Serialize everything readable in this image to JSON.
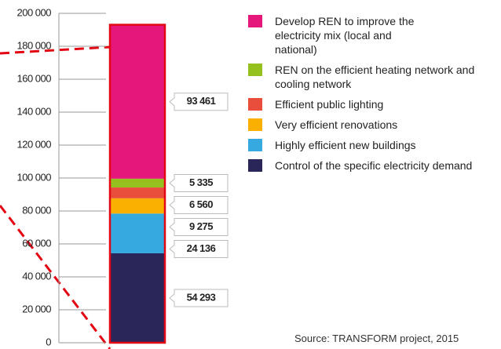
{
  "chart_data": {
    "type": "stacked-bar",
    "series": [
      {
        "name": "Control of the specific electricity demand",
        "color": "#2b2659",
        "values": [
          54293
        ],
        "value_labels": [
          "54 293"
        ]
      },
      {
        "name": "Highly efficient new buildings",
        "color": "#36a9e1",
        "values": [
          24136
        ],
        "value_labels": [
          "24 136"
        ]
      },
      {
        "name": "Very efficient renovations",
        "color": "#f9b000",
        "values": [
          9275
        ],
        "value_labels": [
          "9 275"
        ]
      },
      {
        "name": "Efficient public lighting",
        "color": "#e94e3d",
        "values": [
          6560
        ],
        "value_labels": [
          "6 560"
        ]
      },
      {
        "name": "REN on the efficient heating network and cooling network",
        "color": "#95c11f",
        "values": [
          5335
        ],
        "value_labels": [
          "5 335"
        ]
      },
      {
        "name": "Develop REN to improve the electricity mix (local and national)",
        "color": "#e6177a",
        "values": [
          93461
        ],
        "value_labels": [
          "93 461"
        ]
      }
    ],
    "ylim": [
      0,
      200000
    ],
    "yticks": [
      0,
      {
        "value": 20000,
        "label": "20 000"
      },
      {
        "value": 40000,
        "label": "40 000"
      },
      {
        "value": 60000,
        "label": "60 000"
      },
      {
        "value": 80000,
        "label": "80 000"
      },
      {
        "value": 100000,
        "label": "100 000"
      },
      {
        "value": 120000,
        "label": "120 000"
      },
      {
        "value": 140000,
        "label": "140 000"
      },
      {
        "value": 160000,
        "label": "160 000"
      },
      {
        "value": 180000,
        "label": "180 000"
      },
      {
        "value": 200000,
        "label": "200 000"
      }
    ],
    "source": "Source: TRANSFORM project, 2015"
  }
}
